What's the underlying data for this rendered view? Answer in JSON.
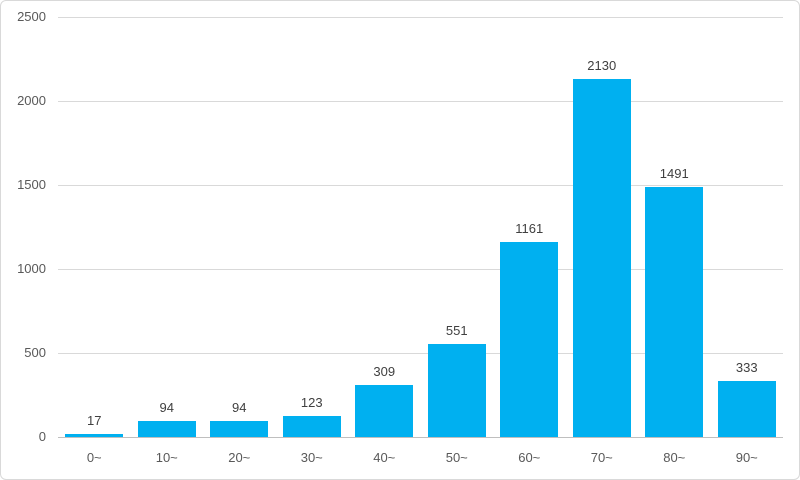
{
  "chart_data": {
    "type": "bar",
    "title": "",
    "xlabel": "",
    "ylabel": "",
    "categories": [
      "0~",
      "10~",
      "20~",
      "30~",
      "40~",
      "50~",
      "60~",
      "70~",
      "80~",
      "90~"
    ],
    "values": [
      17,
      94,
      94,
      123,
      309,
      551,
      1161,
      2130,
      1491,
      333
    ],
    "ylim": [
      0,
      2500
    ],
    "yticks": [
      0,
      500,
      1000,
      1500,
      2000,
      2500
    ],
    "grid": true,
    "legend_position": "none",
    "colors": {
      "bar": "#00B0F0",
      "value_label": "#404040",
      "axis_label": "#595959",
      "gridline": "#D9D9D9",
      "axis_line": "#BFBFBF",
      "frame_border": "#D9D9D9",
      "background": "#FFFFFF"
    }
  }
}
